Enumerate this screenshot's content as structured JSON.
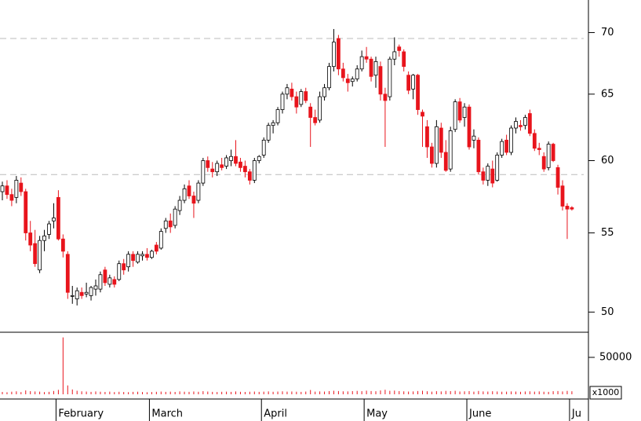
{
  "chart_data": {
    "type": "candlestick",
    "categories": [
      null,
      null,
      null,
      null,
      null,
      null,
      null,
      null,
      null,
      null,
      null,
      null,
      "February",
      null,
      null,
      null,
      null,
      null,
      null,
      null,
      null,
      null,
      null,
      null,
      null,
      null,
      null,
      null,
      null,
      null,
      null,
      null,
      "March",
      null,
      null,
      null,
      null,
      null,
      null,
      null,
      null,
      null,
      null,
      null,
      null,
      null,
      null,
      null,
      null,
      null,
      null,
      null,
      null,
      null,
      null,
      null,
      "April",
      null,
      null,
      null,
      null,
      null,
      null,
      null,
      null,
      null,
      null,
      null,
      null,
      null,
      null,
      null,
      null,
      null,
      null,
      null,
      null,
      null,
      "May",
      null,
      null,
      null,
      null,
      null,
      null,
      null,
      null,
      null,
      null,
      null,
      null,
      null,
      null,
      null,
      null,
      null,
      null,
      null,
      null,
      null,
      "June",
      null,
      null,
      null,
      null,
      null,
      null,
      null,
      null,
      null,
      null,
      null,
      null,
      null,
      null,
      null,
      null,
      null,
      null,
      null,
      null,
      null,
      "Ju"
    ],
    "ohlc": [
      [
        57.8,
        58.5,
        57.2,
        58.2
      ],
      [
        58.2,
        58.6,
        57.3,
        57.6
      ],
      [
        57.6,
        58.0,
        56.8,
        57.2
      ],
      [
        57.4,
        58.9,
        57.0,
        58.6
      ],
      [
        58.4,
        58.8,
        57.5,
        57.8
      ],
      [
        57.8,
        58.0,
        54.5,
        55.0
      ],
      [
        55.0,
        55.8,
        53.8,
        54.2
      ],
      [
        54.3,
        55.2,
        52.8,
        53.0
      ],
      [
        52.6,
        54.8,
        52.4,
        54.5
      ],
      [
        54.5,
        55.2,
        53.8,
        54.8
      ],
      [
        54.9,
        55.8,
        54.6,
        55.6
      ],
      [
        55.8,
        57.0,
        55.3,
        56.0
      ],
      [
        57.4,
        57.9,
        54.5,
        54.6
      ],
      [
        54.6,
        54.9,
        53.4,
        53.8
      ],
      [
        53.6,
        53.8,
        50.8,
        51.2
      ],
      [
        51.0,
        51.6,
        50.5,
        51.0
      ],
      [
        50.8,
        51.5,
        50.4,
        51.3
      ],
      [
        51.2,
        51.5,
        50.8,
        51.0
      ],
      [
        51.1,
        51.8,
        50.9,
        51.2
      ],
      [
        51.0,
        51.6,
        50.7,
        51.5
      ],
      [
        51.4,
        52.0,
        51.0,
        51.6
      ],
      [
        51.4,
        52.5,
        51.2,
        52.3
      ],
      [
        52.6,
        52.8,
        51.6,
        51.8
      ],
      [
        51.7,
        52.3,
        51.5,
        52.1
      ],
      [
        52.0,
        52.2,
        51.5,
        51.7
      ],
      [
        52.0,
        53.2,
        51.9,
        53.0
      ],
      [
        53.0,
        53.3,
        52.3,
        52.6
      ],
      [
        52.8,
        53.8,
        52.5,
        53.6
      ],
      [
        53.6,
        53.8,
        52.8,
        53.2
      ],
      [
        53.1,
        53.8,
        53.0,
        53.6
      ],
      [
        53.5,
        53.8,
        53.2,
        53.6
      ],
      [
        53.6,
        54.0,
        53.2,
        53.4
      ],
      [
        53.4,
        53.9,
        53.3,
        53.8
      ],
      [
        54.2,
        54.4,
        53.6,
        53.8
      ],
      [
        54.0,
        55.3,
        53.9,
        55.1
      ],
      [
        55.3,
        56.0,
        55.0,
        55.8
      ],
      [
        55.8,
        56.3,
        55.0,
        55.4
      ],
      [
        55.5,
        56.8,
        55.3,
        56.6
      ],
      [
        56.5,
        57.5,
        56.2,
        57.2
      ],
      [
        57.2,
        58.3,
        57.0,
        58.0
      ],
      [
        58.2,
        58.6,
        57.3,
        57.5
      ],
      [
        57.5,
        57.8,
        56.0,
        57.0
      ],
      [
        57.2,
        58.6,
        57.0,
        58.4
      ],
      [
        58.4,
        60.2,
        58.2,
        60.0
      ],
      [
        60.0,
        60.3,
        59.2,
        59.5
      ],
      [
        59.4,
        59.9,
        58.8,
        59.2
      ],
      [
        59.2,
        60.0,
        58.9,
        59.8
      ],
      [
        59.7,
        60.2,
        59.3,
        59.5
      ],
      [
        59.6,
        60.4,
        59.4,
        60.2
      ],
      [
        60.0,
        60.8,
        59.6,
        60.3
      ],
      [
        60.3,
        61.5,
        59.6,
        59.8
      ],
      [
        59.9,
        60.2,
        59.2,
        59.5
      ],
      [
        59.6,
        60.0,
        58.8,
        59.2
      ],
      [
        59.2,
        59.4,
        58.3,
        58.6
      ],
      [
        58.6,
        60.2,
        58.4,
        60.0
      ],
      [
        60.0,
        60.4,
        59.8,
        60.3
      ],
      [
        60.4,
        61.7,
        60.2,
        61.5
      ],
      [
        61.5,
        62.8,
        61.3,
        62.6
      ],
      [
        62.6,
        63.0,
        62.0,
        62.8
      ],
      [
        62.8,
        64.0,
        62.6,
        63.8
      ],
      [
        63.8,
        65.2,
        63.5,
        65.0
      ],
      [
        65.0,
        65.8,
        64.6,
        65.5
      ],
      [
        65.4,
        65.9,
        64.5,
        64.8
      ],
      [
        64.8,
        65.2,
        63.5,
        64.0
      ],
      [
        64.2,
        65.4,
        64.0,
        65.2
      ],
      [
        65.2,
        65.5,
        64.3,
        64.5
      ],
      [
        64.0,
        64.3,
        61.0,
        63.2
      ],
      [
        63.2,
        63.8,
        62.6,
        62.8
      ],
      [
        63.0,
        65.2,
        62.8,
        64.8
      ],
      [
        64.8,
        65.8,
        64.5,
        65.5
      ],
      [
        65.5,
        67.5,
        65.3,
        67.2
      ],
      [
        67.2,
        70.3,
        66.8,
        69.2
      ],
      [
        69.5,
        69.8,
        66.5,
        67.0
      ],
      [
        67.0,
        67.5,
        66.0,
        66.3
      ],
      [
        66.2,
        66.6,
        65.2,
        65.9
      ],
      [
        66.0,
        66.4,
        65.6,
        66.2
      ],
      [
        66.2,
        67.3,
        66.0,
        67.0
      ],
      [
        67.0,
        68.5,
        66.8,
        68.0
      ],
      [
        68.0,
        68.8,
        67.5,
        67.8
      ],
      [
        67.8,
        68.0,
        66.0,
        66.4
      ],
      [
        66.5,
        68.0,
        65.5,
        67.6
      ],
      [
        67.2,
        67.6,
        64.5,
        65.0
      ],
      [
        65.0,
        65.5,
        61.0,
        64.5
      ],
      [
        64.8,
        68.0,
        64.5,
        67.8
      ],
      [
        67.8,
        69.6,
        67.3,
        68.4
      ],
      [
        68.8,
        69.0,
        68.0,
        68.5
      ],
      [
        68.4,
        68.6,
        66.8,
        67.2
      ],
      [
        66.5,
        66.8,
        65.0,
        65.3
      ],
      [
        65.4,
        66.6,
        64.6,
        66.5
      ],
      [
        66.5,
        66.6,
        63.4,
        63.8
      ],
      [
        63.6,
        63.8,
        61.0,
        63.3
      ],
      [
        62.5,
        63.0,
        60.2,
        61.0
      ],
      [
        61.0,
        61.3,
        59.5,
        59.8
      ],
      [
        59.8,
        63.0,
        59.5,
        62.5
      ],
      [
        62.4,
        62.8,
        60.2,
        60.6
      ],
      [
        60.6,
        61.5,
        59.2,
        59.3
      ],
      [
        59.4,
        62.5,
        59.2,
        62.2
      ],
      [
        62.3,
        64.6,
        62.1,
        64.4
      ],
      [
        64.4,
        64.7,
        62.8,
        63.0
      ],
      [
        63.2,
        64.3,
        62.5,
        64.0
      ],
      [
        64.0,
        64.2,
        60.8,
        61.0
      ],
      [
        61.5,
        62.3,
        60.9,
        61.8
      ],
      [
        61.5,
        61.7,
        59.0,
        59.2
      ],
      [
        59.2,
        59.5,
        58.3,
        58.6
      ],
      [
        58.6,
        59.8,
        58.2,
        59.6
      ],
      [
        59.4,
        60.0,
        58.1,
        58.4
      ],
      [
        58.6,
        60.6,
        58.5,
        60.4
      ],
      [
        60.4,
        61.6,
        60.2,
        61.4
      ],
      [
        61.5,
        61.9,
        60.4,
        60.6
      ],
      [
        60.6,
        62.6,
        60.4,
        62.4
      ],
      [
        62.4,
        63.2,
        62.0,
        62.9
      ],
      [
        62.6,
        63.0,
        62.2,
        62.5
      ],
      [
        62.6,
        63.4,
        62.3,
        63.2
      ],
      [
        63.5,
        63.8,
        61.8,
        62.0
      ],
      [
        62.0,
        62.3,
        60.7,
        60.9
      ],
      [
        60.9,
        61.3,
        60.4,
        60.8
      ],
      [
        60.3,
        60.6,
        59.2,
        59.4
      ],
      [
        59.5,
        61.4,
        59.3,
        61.2
      ],
      [
        61.2,
        61.3,
        59.9,
        60.0
      ],
      [
        59.5,
        59.7,
        57.6,
        58.1
      ],
      [
        58.2,
        58.6,
        56.5,
        56.8
      ],
      [
        56.8,
        57.0,
        54.6,
        56.6
      ],
      [
        56.7,
        56.8,
        56.5,
        56.6
      ]
    ],
    "colors": {
      "up": "#ffffff",
      "down": "#e8141c",
      "outline": "#000000"
    },
    "log_scale": true,
    "ylim": [
      48.8,
      72.8
    ],
    "yticks": [
      50,
      55,
      60,
      65,
      70
    ],
    "hlines": [
      69.5,
      59
    ],
    "volume": {
      "values": [
        3200,
        2800,
        3500,
        4000,
        3000,
        5200,
        4200,
        3800,
        3600,
        3000,
        3300,
        4500,
        6000,
        77000,
        12000,
        6500,
        4800,
        4000,
        3700,
        3300,
        3900,
        3500,
        3200,
        3600,
        3000,
        3400,
        3100,
        2900,
        3300,
        3500,
        3000,
        2800,
        3100,
        3400,
        3700,
        3300,
        3600,
        3200,
        3900,
        3500,
        3300,
        3800,
        3400,
        4200,
        3700,
        3300,
        3100,
        3400,
        3600,
        3300,
        3900,
        3400,
        3200,
        3500,
        3700,
        3300,
        3600,
        3900,
        3400,
        3700,
        4000,
        3600,
        3800,
        3500,
        3300,
        3700,
        5800,
        3600,
        3900,
        3700,
        4200,
        4800,
        4400,
        4000,
        3900,
        4300,
        4600,
        4200,
        4900,
        4400,
        4100,
        5200,
        6100,
        4700,
        5000,
        4300,
        4000,
        3700,
        3900,
        4400,
        4800,
        4100,
        3600,
        4200,
        3900,
        4600,
        4300,
        4700,
        3800,
        4000,
        4200,
        3600,
        4500,
        3900,
        3700,
        4100,
        3800,
        3500,
        3600,
        3900,
        3700,
        3400,
        3800,
        4000,
        3600,
        3900,
        3500,
        3300,
        4200,
        4400,
        3800,
        4600,
        4100
      ],
      "color": "#e8141c",
      "ylim": [
        0,
        84000
      ],
      "yticks": [
        50000
      ],
      "unit_label": "x1000"
    }
  }
}
